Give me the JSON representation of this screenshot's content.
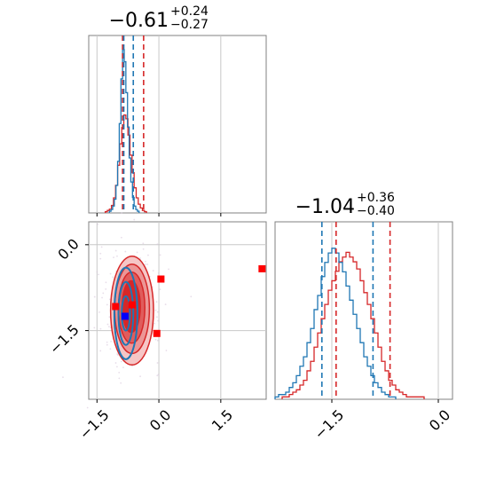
{
  "chart_data": {
    "type": "corner",
    "params": [
      {
        "title_main": "−0.61",
        "title_sup": "+0.24",
        "title_sub": "−0.27",
        "range": [
          -1.7,
          2.6
        ],
        "ticks": [
          {
            "v": -1.5,
            "label": "−1.5"
          },
          {
            "v": 0.0,
            "label": "0.0"
          },
          {
            "v": 1.5,
            "label": "1.5"
          }
        ]
      },
      {
        "title_main": "−1.04",
        "title_sup": "+0.36",
        "title_sub": "−0.40",
        "range": [
          -2.3,
          0.2
        ],
        "ticks": [
          {
            "v": -1.5,
            "label": "−1.5"
          },
          {
            "v": 0.0,
            "label": "0.0"
          }
        ]
      }
    ],
    "scatter_yticks": [
      {
        "v": 0.0,
        "label": "0.0"
      },
      {
        "v": -1.5,
        "label": "−1.5"
      }
    ],
    "scatter_yrange": [
      -2.7,
      0.4
    ],
    "series": [
      {
        "color": "#d62728",
        "hist1": {
          "bin_start": -1.3,
          "bin_width": 0.05,
          "counts": [
            1,
            2,
            3,
            6,
            12,
            22,
            38,
            55,
            68,
            78,
            75,
            62,
            46,
            32,
            20,
            12,
            7,
            4,
            2,
            1
          ]
        },
        "quantiles1": [
          -0.88,
          -0.37
        ],
        "hist2": {
          "bin_start": -2.2,
          "bin_width": 0.05,
          "counts": [
            1,
            1,
            2,
            3,
            4,
            6,
            8,
            12,
            16,
            22,
            28,
            34,
            40,
            46,
            50,
            54,
            58,
            60,
            62,
            60,
            58,
            55,
            50,
            45,
            40,
            34,
            28,
            22,
            16,
            12,
            8,
            6,
            4,
            3,
            2,
            1,
            1,
            1,
            1,
            1
          ]
        },
        "quantiles2": [
          -1.44,
          -0.68
        ],
        "contours": [
          {
            "cx": -0.65,
            "cy": -1.15,
            "rx": 0.52,
            "ry": 0.95,
            "fill": "#f6c6c6"
          },
          {
            "cx": -0.65,
            "cy": -1.12,
            "rx": 0.42,
            "ry": 0.78,
            "fill": "#ec9696"
          },
          {
            "cx": -0.66,
            "cy": -1.1,
            "rx": 0.32,
            "ry": 0.62,
            "fill": "#e05c5c"
          },
          {
            "cx": -0.67,
            "cy": -1.08,
            "rx": 0.22,
            "ry": 0.45,
            "fill": "#d62728"
          }
        ],
        "markers": [
          {
            "x": 0.05,
            "y": -0.6
          },
          {
            "x": -1.05,
            "y": -1.08
          },
          {
            "x": -0.65,
            "y": -1.05
          },
          {
            "x": -0.05,
            "y": -1.55
          },
          {
            "x": 2.5,
            "y": -0.42
          }
        ]
      },
      {
        "color": "#1f77b4",
        "hist1": {
          "bin_start": -1.2,
          "bin_width": 0.04,
          "counts": [
            1,
            2,
            4,
            8,
            16,
            30,
            52,
            78,
            95,
            88,
            70,
            50,
            32,
            18,
            9,
            4,
            2,
            1
          ]
        },
        "quantiles1": [
          -0.85,
          -0.62
        ],
        "hist2": {
          "bin_start": -2.3,
          "bin_width": 0.05,
          "counts": [
            1,
            2,
            2,
            3,
            5,
            7,
            10,
            14,
            18,
            24,
            30,
            38,
            44,
            52,
            58,
            62,
            64,
            62,
            58,
            54,
            48,
            42,
            36,
            30,
            24,
            18,
            14,
            10,
            7,
            5,
            3,
            2,
            1,
            1
          ]
        },
        "quantiles2": [
          -1.64,
          -0.92
        ],
        "contours": [
          {
            "cx": -0.8,
            "cy": -1.2,
            "rx": 0.28,
            "ry": 0.8
          },
          {
            "cx": -0.8,
            "cy": -1.2,
            "rx": 0.18,
            "ry": 0.55
          },
          {
            "cx": -0.8,
            "cy": -1.2,
            "rx": 0.1,
            "ry": 0.3
          }
        ],
        "markers": [
          {
            "x": -0.82,
            "y": -1.25
          }
        ]
      }
    ]
  }
}
